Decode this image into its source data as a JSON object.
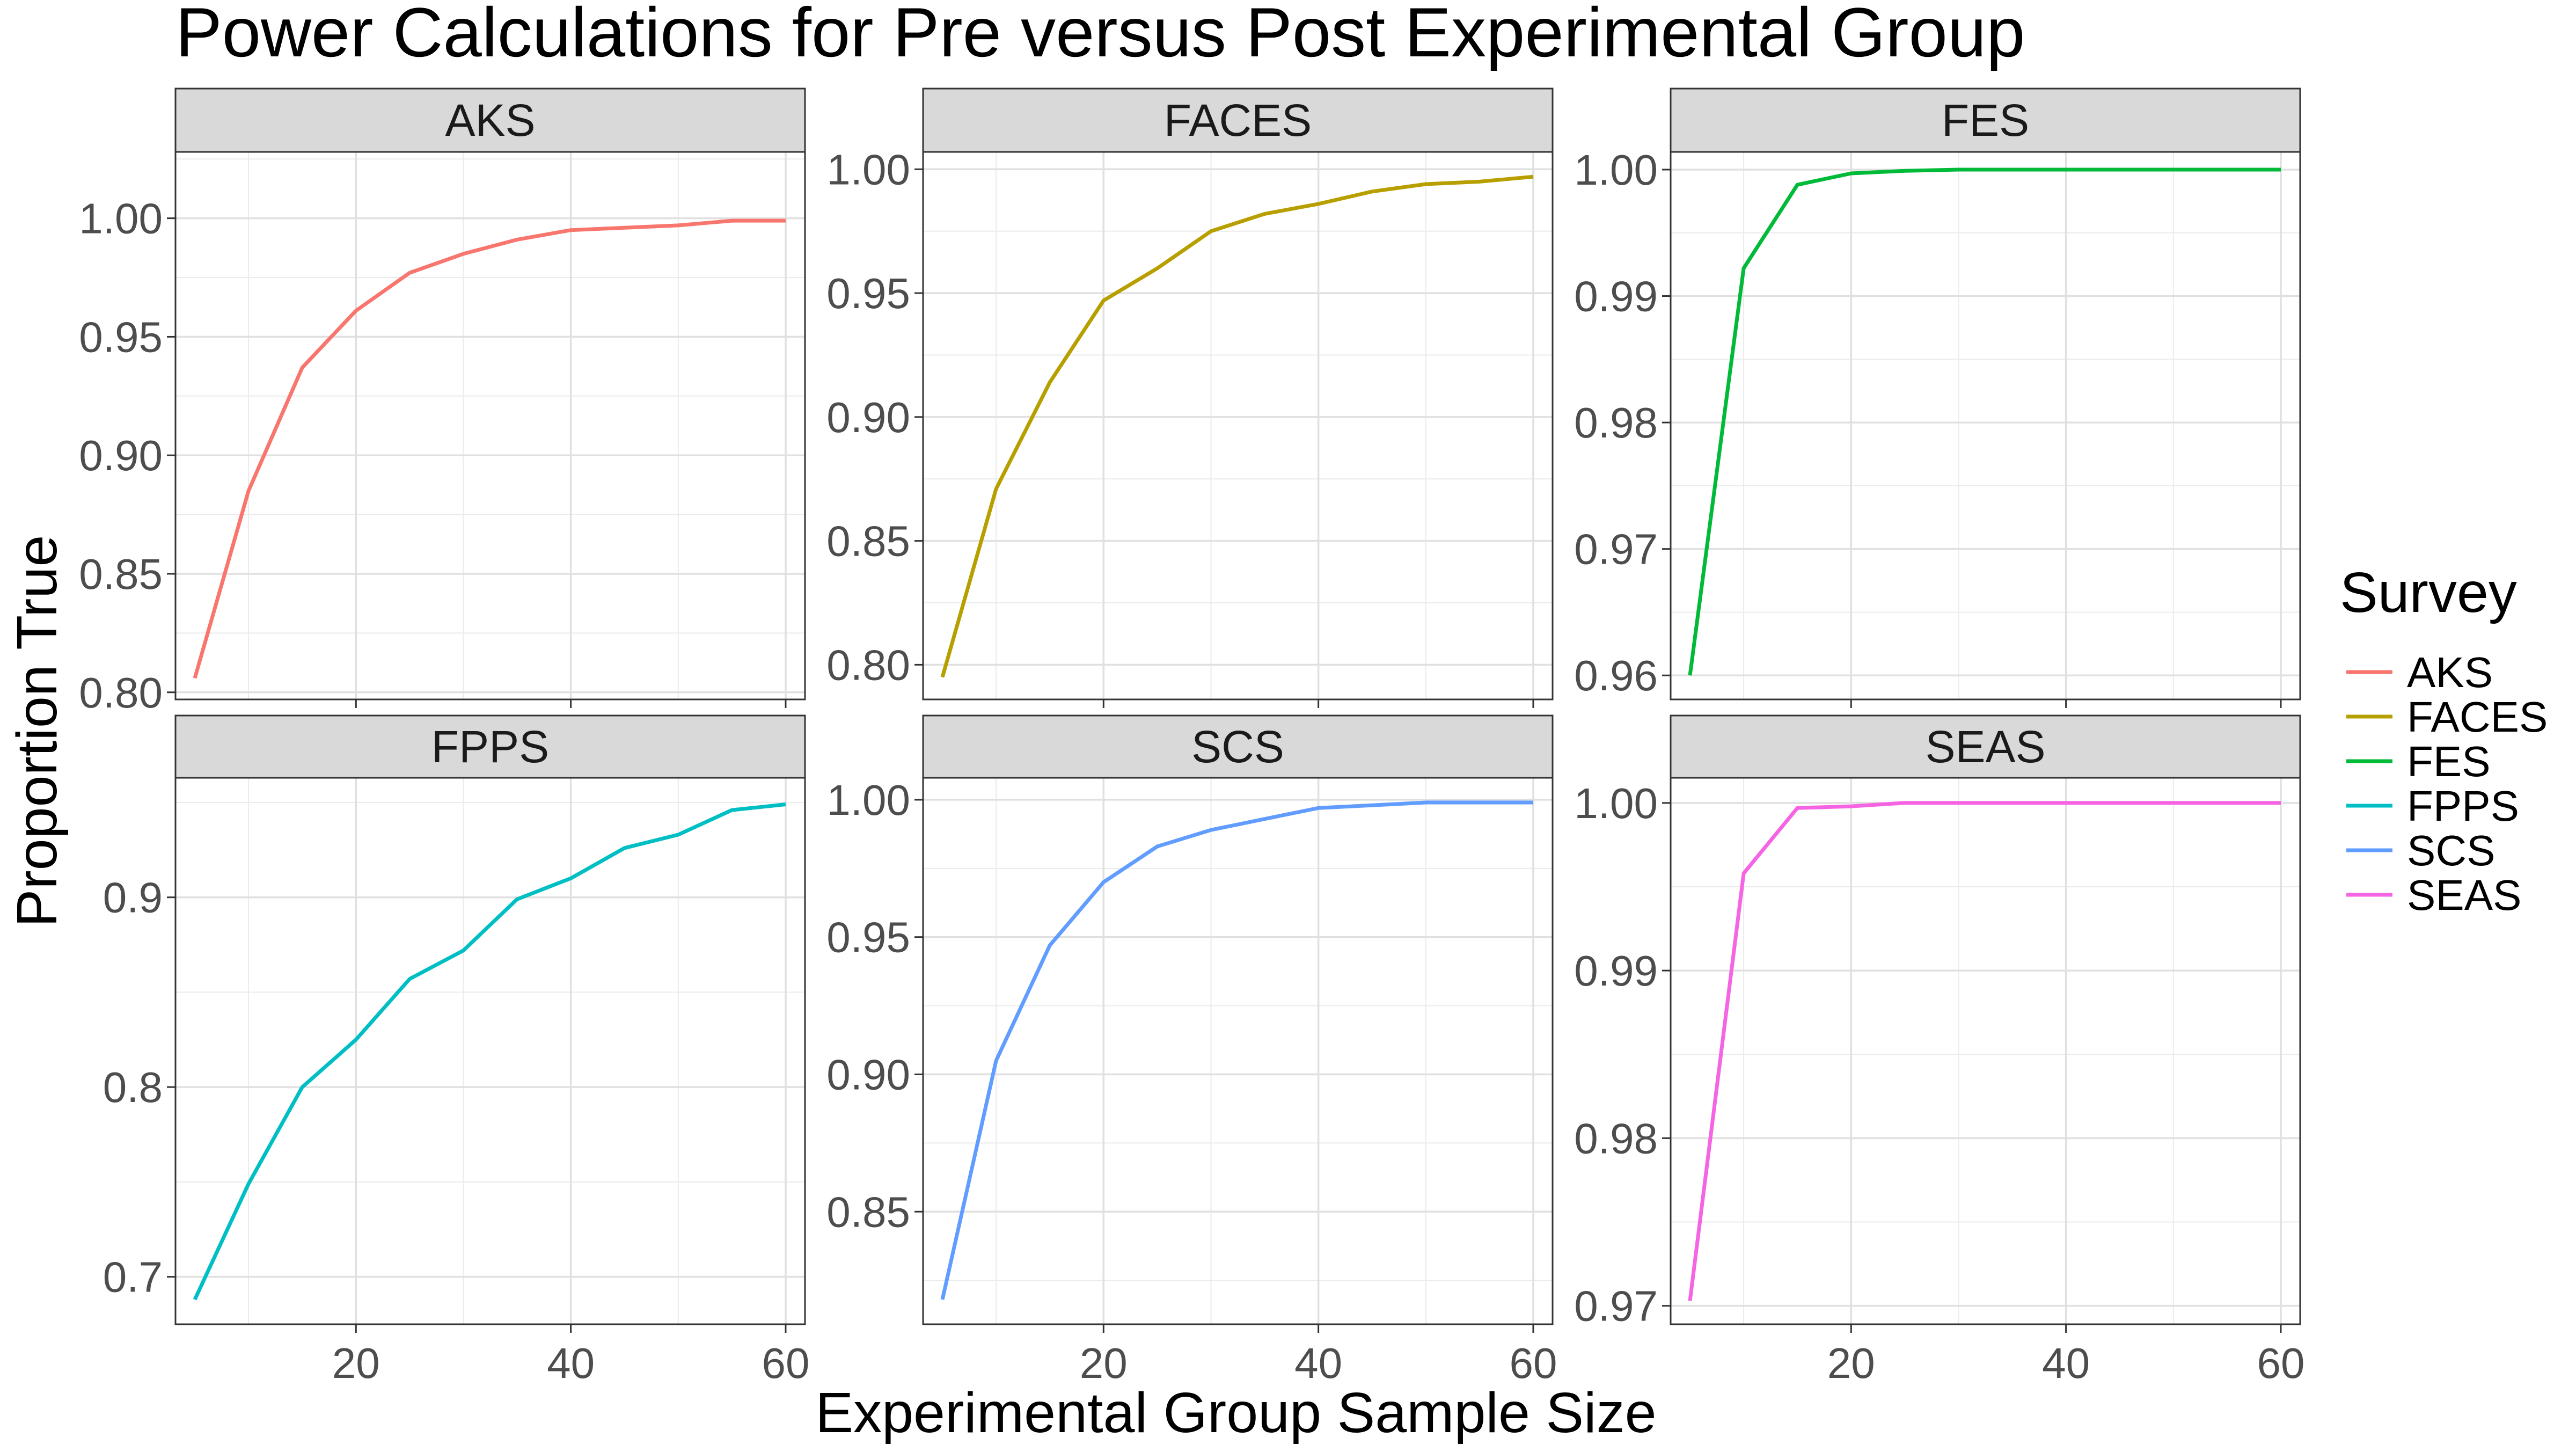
{
  "chart_data": {
    "type": "line",
    "title": "Power Calculations for Pre versus Post Experimental Group",
    "xlabel": "Experimental Group Sample Size",
    "ylabel": "Proportion True",
    "legend": {
      "title": "Survey",
      "position": "right",
      "entries": [
        "AKS",
        "FACES",
        "FES",
        "FPPS",
        "SCS",
        "SEAS"
      ]
    },
    "grid": true,
    "x_ticks": [
      20,
      40,
      60
    ],
    "xlim": [
      3.2,
      61.8
    ],
    "panels": [
      {
        "name": "AKS",
        "color": "#F8766D",
        "ylim": [
          0.797,
          1.028
        ],
        "y_ticks": [
          "0.80",
          "0.85",
          "0.90",
          "0.95",
          "1.00"
        ],
        "x": [
          5,
          10,
          15,
          20,
          25,
          30,
          35,
          40,
          45,
          50,
          55,
          60
        ],
        "y": [
          0.806,
          0.885,
          0.937,
          0.961,
          0.977,
          0.985,
          0.991,
          0.995,
          0.996,
          0.997,
          0.999,
          0.999
        ]
      },
      {
        "name": "FACES",
        "color": "#B79F00",
        "ylim": [
          0.786,
          1.007
        ],
        "y_ticks": [
          "0.80",
          "0.85",
          "0.90",
          "0.95",
          "1.00"
        ],
        "x": [
          5,
          10,
          15,
          20,
          25,
          30,
          35,
          40,
          45,
          50,
          55,
          60
        ],
        "y": [
          0.795,
          0.871,
          0.914,
          0.947,
          0.96,
          0.975,
          0.982,
          0.986,
          0.991,
          0.994,
          0.995,
          0.997
        ]
      },
      {
        "name": "FES",
        "color": "#00BA38",
        "ylim": [
          0.9581,
          1.0014
        ],
        "y_ticks": [
          "0.96",
          "0.97",
          "0.98",
          "0.99",
          "1.00"
        ],
        "x": [
          5,
          10,
          15,
          20,
          25,
          30,
          35,
          40,
          45,
          50,
          55,
          60
        ],
        "y": [
          0.96,
          0.9922,
          0.9988,
          0.9997,
          0.9999,
          1.0,
          1.0,
          1.0,
          1.0,
          1.0,
          1.0,
          1.0
        ]
      },
      {
        "name": "FPPS",
        "color": "#00BFC4",
        "ylim": [
          0.675,
          0.963
        ],
        "y_ticks": [
          "0.7",
          "0.8",
          "0.9"
        ],
        "x": [
          5,
          10,
          15,
          20,
          25,
          30,
          35,
          40,
          45,
          50,
          55,
          60
        ],
        "y": [
          0.688,
          0.749,
          0.8,
          0.825,
          0.857,
          0.872,
          0.899,
          0.91,
          0.926,
          0.933,
          0.946,
          0.949
        ]
      },
      {
        "name": "SCS",
        "color": "#619CFF",
        "ylim": [
          0.809,
          1.008
        ],
        "y_ticks": [
          "0.85",
          "0.90",
          "0.95",
          "1.00"
        ],
        "x": [
          5,
          10,
          15,
          20,
          25,
          30,
          35,
          40,
          45,
          50,
          55,
          60
        ],
        "y": [
          0.818,
          0.905,
          0.947,
          0.97,
          0.983,
          0.989,
          0.993,
          0.997,
          0.998,
          0.999,
          0.999,
          0.999
        ]
      },
      {
        "name": "SEAS",
        "color": "#F564E3",
        "ylim": [
          0.9689,
          1.0015
        ],
        "y_ticks": [
          "0.97",
          "0.98",
          "0.99",
          "1.00"
        ],
        "x": [
          5,
          10,
          15,
          20,
          25,
          30,
          35,
          40,
          45,
          50,
          55,
          60
        ],
        "y": [
          0.9703,
          0.9958,
          0.9997,
          0.9998,
          1.0,
          1.0,
          1.0,
          1.0,
          1.0,
          1.0,
          1.0,
          1.0
        ]
      }
    ]
  }
}
